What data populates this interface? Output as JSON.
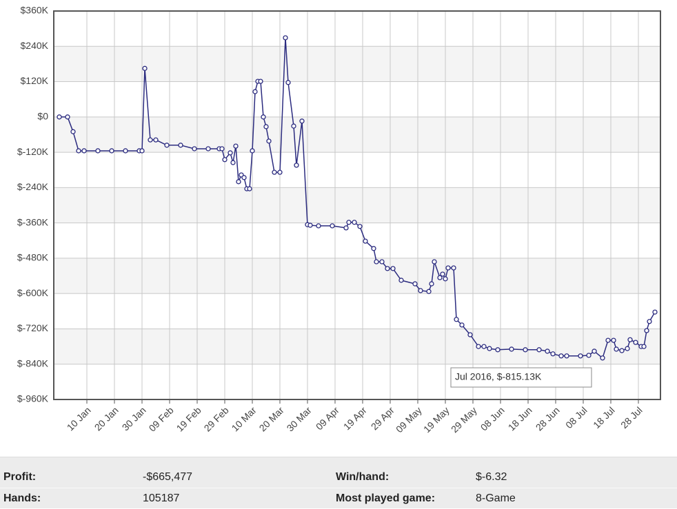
{
  "chart_data": {
    "type": "line",
    "color": "#2b2b7f",
    "grid": true,
    "markers": true,
    "tooltip": "Jul 2016, $-815.13K",
    "xlim": [
      "2015-12-29",
      "2016-08-05"
    ],
    "ylim": [
      -960,
      360
    ],
    "yticks": [
      {
        "value": 360,
        "label": "$360K"
      },
      {
        "value": 240,
        "label": "$240K"
      },
      {
        "value": 120,
        "label": "$120K"
      },
      {
        "value": 0,
        "label": "$0"
      },
      {
        "value": -120,
        "label": "$-120K"
      },
      {
        "value": -240,
        "label": "$-240K"
      },
      {
        "value": -360,
        "label": "$-360K"
      },
      {
        "value": -480,
        "label": "$-480K"
      },
      {
        "value": -600,
        "label": "$-600K"
      },
      {
        "value": -720,
        "label": "$-720K"
      },
      {
        "value": -840,
        "label": "$-840K"
      },
      {
        "value": -960,
        "label": "$-960K"
      }
    ],
    "xticks": [
      {
        "value": "2016-01-10",
        "label": "10 Jan"
      },
      {
        "value": "2016-01-20",
        "label": "20 Jan"
      },
      {
        "value": "2016-01-30",
        "label": "30 Jan"
      },
      {
        "value": "2016-02-09",
        "label": "09 Feb"
      },
      {
        "value": "2016-02-19",
        "label": "19 Feb"
      },
      {
        "value": "2016-02-29",
        "label": "29 Feb"
      },
      {
        "value": "2016-03-10",
        "label": "10 Mar"
      },
      {
        "value": "2016-03-20",
        "label": "20 Mar"
      },
      {
        "value": "2016-03-30",
        "label": "30 Mar"
      },
      {
        "value": "2016-04-09",
        "label": "09 Apr"
      },
      {
        "value": "2016-04-19",
        "label": "19 Apr"
      },
      {
        "value": "2016-04-29",
        "label": "29 Apr"
      },
      {
        "value": "2016-05-09",
        "label": "09 May"
      },
      {
        "value": "2016-05-19",
        "label": "19 May"
      },
      {
        "value": "2016-05-29",
        "label": "29 May"
      },
      {
        "value": "2016-06-08",
        "label": "08 Jun"
      },
      {
        "value": "2016-06-18",
        "label": "18 Jun"
      },
      {
        "value": "2016-06-28",
        "label": "28 Jun"
      },
      {
        "value": "2016-07-08",
        "label": "08 Jul"
      },
      {
        "value": "2016-07-18",
        "label": "18 Jul"
      },
      {
        "value": "2016-07-28",
        "label": "28 Jul"
      }
    ],
    "x": [
      "2015-12-31",
      "2016-01-03",
      "2016-01-05",
      "2016-01-07",
      "2016-01-09",
      "2016-01-14",
      "2016-01-19",
      "2016-01-24",
      "2016-01-29",
      "2016-01-30",
      "2016-01-31",
      "2016-02-02",
      "2016-02-04",
      "2016-02-08",
      "2016-02-13",
      "2016-02-18",
      "2016-02-23",
      "2016-02-27",
      "2016-02-28",
      "2016-02-29",
      "2016-03-02",
      "2016-03-03",
      "2016-03-04",
      "2016-03-05",
      "2016-03-06",
      "2016-03-07",
      "2016-03-08",
      "2016-03-09",
      "2016-03-10",
      "2016-03-11",
      "2016-03-12",
      "2016-03-13",
      "2016-03-14",
      "2016-03-15",
      "2016-03-16",
      "2016-03-18",
      "2016-03-20",
      "2016-03-22",
      "2016-03-23",
      "2016-03-25",
      "2016-03-26",
      "2016-03-28",
      "2016-03-30",
      "2016-03-31",
      "2016-04-03",
      "2016-04-08",
      "2016-04-13",
      "2016-04-14",
      "2016-04-16",
      "2016-04-18",
      "2016-04-20",
      "2016-04-23",
      "2016-04-24",
      "2016-04-26",
      "2016-04-28",
      "2016-04-30",
      "2016-05-03",
      "2016-05-08",
      "2016-05-10",
      "2016-05-13",
      "2016-05-14",
      "2016-05-15",
      "2016-05-17",
      "2016-05-18",
      "2016-05-19",
      "2016-05-20",
      "2016-05-22",
      "2016-05-23",
      "2016-05-25",
      "2016-05-28",
      "2016-05-31",
      "2016-06-02",
      "2016-06-04",
      "2016-06-07",
      "2016-06-12",
      "2016-06-17",
      "2016-06-22",
      "2016-06-25",
      "2016-06-27",
      "2016-06-30",
      "2016-07-02",
      "2016-07-07",
      "2016-07-10",
      "2016-07-12",
      "2016-07-15",
      "2016-07-17",
      "2016-07-19",
      "2016-07-20",
      "2016-07-22",
      "2016-07-24",
      "2016-07-25",
      "2016-07-27",
      "2016-07-29",
      "2016-07-30",
      "2016-07-31",
      "2016-08-01",
      "2016-08-03"
    ],
    "values": [
      0,
      0,
      -50,
      -115,
      -115,
      -115,
      -115,
      -115,
      -115,
      -115,
      165,
      -78,
      -78,
      -96,
      -96,
      -108,
      -108,
      -108,
      -108,
      -145,
      -122,
      -155,
      -99,
      -220,
      -197,
      -206,
      -244,
      -244,
      -115,
      86,
      121,
      121,
      0,
      -33,
      -82,
      -188,
      -188,
      269,
      117,
      -31,
      -164,
      -14,
      -366,
      -368,
      -370,
      -370,
      -377,
      -358,
      -358,
      -372,
      -422,
      -447,
      -492,
      -492,
      -515,
      -515,
      -555,
      -567,
      -590,
      -593,
      -567,
      -492,
      -546,
      -534,
      -550,
      -513,
      -513,
      -688,
      -707,
      -740,
      -780,
      -780,
      -787,
      -791,
      -789,
      -791,
      -791,
      -796,
      -805,
      -812,
      -812,
      -812,
      -810,
      -796,
      -819,
      -759,
      -759,
      -789,
      -794,
      -787,
      -757,
      -766,
      -780,
      -780,
      -726,
      -695,
      -663
    ]
  },
  "stats": [
    [
      {
        "label": "Profit:",
        "value": "-$665,477"
      },
      {
        "label": "Win/hand:",
        "value": "$-6.32"
      }
    ],
    [
      {
        "label": "Hands:",
        "value": "105187"
      },
      {
        "label": "Most played game:",
        "value": "8-Game"
      }
    ]
  ]
}
